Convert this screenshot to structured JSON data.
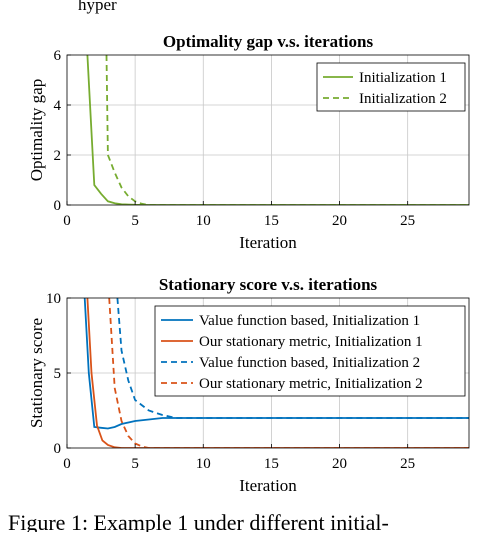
{
  "top_text": "hyper",
  "caption": "Figure 1:  Example 1 under different initial-",
  "chart_data": [
    {
      "type": "line",
      "title": "Optimality gap v.s. iterations",
      "xlabel": "Iteration",
      "ylabel": "Optimality gap",
      "xlim": [
        0,
        29.5
      ],
      "ylim": [
        0,
        6
      ],
      "xticks": [
        "0",
        "5",
        "10",
        "15",
        "20",
        "25"
      ],
      "yticks": [
        "0",
        "2",
        "4",
        "6"
      ],
      "grid": true,
      "legend_position": "top-right",
      "series": [
        {
          "name": "Initialization 1",
          "color": "#77ac30",
          "dash": "solid",
          "x": [
            1.5,
            2,
            2.5,
            3,
            3.5,
            4,
            5,
            6,
            29.5
          ],
          "y": [
            6,
            0.8,
            0.45,
            0.15,
            0.07,
            0.03,
            0.01,
            0,
            0
          ]
        },
        {
          "name": "Initialization 2",
          "color": "#77ac30",
          "dash": "dashed",
          "x": [
            2.9,
            3,
            3.5,
            4,
            4.5,
            5,
            5.5,
            6,
            29.5
          ],
          "y": [
            6,
            2,
            1.3,
            0.7,
            0.35,
            0.15,
            0.05,
            0,
            0
          ]
        }
      ]
    },
    {
      "type": "line",
      "title": "Stationary score v.s. iterations",
      "xlabel": "Iteration",
      "ylabel": "Stationary score",
      "xlim": [
        0,
        29.5
      ],
      "ylim": [
        0,
        10
      ],
      "xticks": [
        "0",
        "5",
        "10",
        "15",
        "20",
        "25"
      ],
      "yticks": [
        "0",
        "5",
        "10"
      ],
      "grid": true,
      "legend_position": "top-right",
      "series": [
        {
          "name": "Value function based, Initialization 1",
          "color": "#0072bd",
          "dash": "solid",
          "x": [
            1.3,
            1.6,
            2,
            2.5,
            3,
            3.5,
            4,
            5,
            6,
            7,
            8,
            29.5
          ],
          "y": [
            10,
            5,
            1.4,
            1.35,
            1.3,
            1.4,
            1.6,
            1.8,
            1.9,
            2,
            2,
            2
          ]
        },
        {
          "name": "Our stationary metric, Initialization 1",
          "color": "#d95319",
          "dash": "solid",
          "x": [
            1.5,
            1.8,
            2.2,
            2.6,
            3,
            3.5,
            4,
            29.5
          ],
          "y": [
            10,
            5,
            1.5,
            0.5,
            0.2,
            0.05,
            0,
            0
          ]
        },
        {
          "name": "Value function based, Initialization 2",
          "color": "#0072bd",
          "dash": "dashed",
          "x": [
            3.7,
            4,
            4.5,
            5,
            6,
            7,
            8,
            9,
            29.5
          ],
          "y": [
            10,
            6.5,
            4.5,
            3.2,
            2.5,
            2.2,
            2,
            2,
            2
          ]
        },
        {
          "name": "Our stationary metric, Initialization 2",
          "color": "#d95319",
          "dash": "dashed",
          "x": [
            3.1,
            3.5,
            4,
            4.5,
            5,
            5.5,
            6,
            29.5
          ],
          "y": [
            10,
            4,
            1.8,
            0.8,
            0.3,
            0.1,
            0,
            0
          ]
        }
      ]
    }
  ]
}
